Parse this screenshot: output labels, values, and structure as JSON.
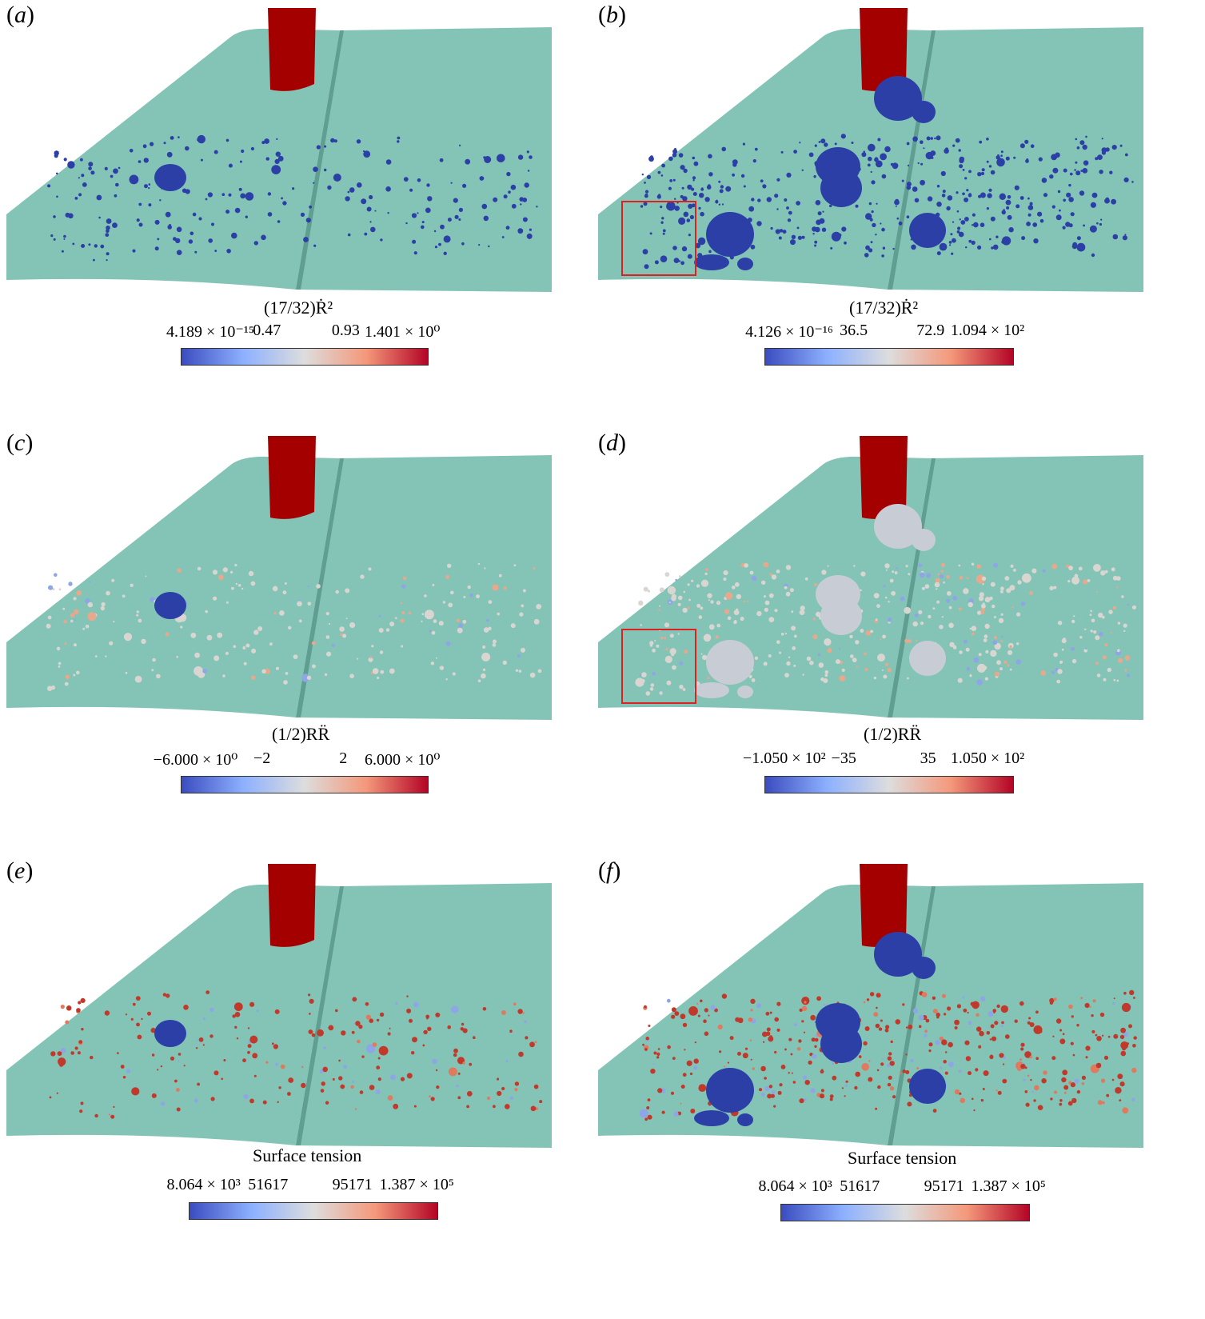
{
  "colors": {
    "surface": "#83c4b6",
    "surface_edge": "#5f9e91",
    "cylinder": "#a40000",
    "bubble_blue": "#2c3fa6",
    "bubble_grey": "#c8ccd4",
    "bubble_red": "#c0392b"
  },
  "panels": [
    {
      "id": "a",
      "label": "a",
      "colorbar_title": "(17/32)Ṙ²",
      "ticks": [
        "4.189 × 10⁻¹⁵",
        "0.47",
        "0.93",
        "1.401 × 10⁰"
      ],
      "variant": "early",
      "tint": "blue"
    },
    {
      "id": "b",
      "label": "b",
      "colorbar_title": "(17/32)Ṙ²",
      "ticks": [
        "4.126 × 10⁻¹⁶",
        "36.5",
        "72.9",
        "1.094 × 10²"
      ],
      "variant": "late",
      "tint": "blue"
    },
    {
      "id": "c",
      "label": "c",
      "colorbar_title": "(1/2)RR̈",
      "ticks": [
        "−6.000 × 10⁰",
        "−2",
        "2",
        "6.000 × 10⁰"
      ],
      "variant": "early",
      "tint": "grey"
    },
    {
      "id": "d",
      "label": "d",
      "colorbar_title": "(1/2)RR̈",
      "ticks": [
        "−1.050 × 10²",
        "−35",
        "35",
        "1.050 × 10²"
      ],
      "variant": "late",
      "tint": "grey"
    },
    {
      "id": "e",
      "label": "e",
      "colorbar_title": "Surface tension",
      "ticks": [
        "8.064 × 10³",
        "51617",
        "95171",
        "1.387 × 10⁵"
      ],
      "variant": "early",
      "tint": "red"
    },
    {
      "id": "f",
      "label": "f",
      "colorbar_title": "Surface tension",
      "ticks": [
        "8.064 × 10³",
        "51617",
        "95171",
        "1.387 × 10⁵"
      ],
      "variant": "late",
      "tint": "red"
    }
  ]
}
